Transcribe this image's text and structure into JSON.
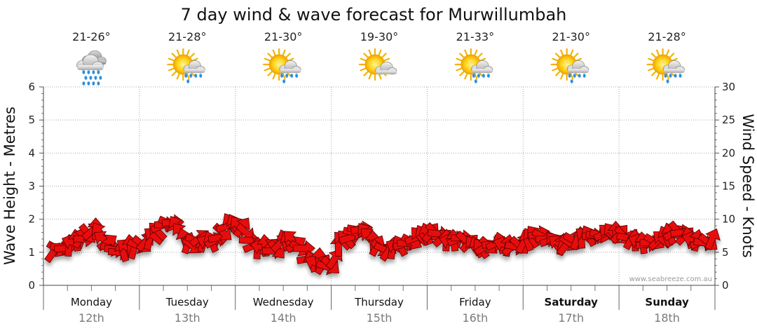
{
  "chart_data": {
    "type": "line",
    "title": "7 day wind & wave forecast for Murwillumbah",
    "ylabel_left": "Wave Height - Metres",
    "ylabel_right": "Wind Speed - Knots",
    "ylim_left": [
      0,
      6
    ],
    "ylim_right": [
      0,
      30
    ],
    "yticks_left": [
      "0",
      "1",
      "2",
      "3",
      "4",
      "5",
      "6"
    ],
    "yticks_right": [
      "0",
      "5",
      "10",
      "15",
      "20",
      "25",
      "30"
    ],
    "grid": true,
    "days": [
      {
        "name": "Monday",
        "date": "12th",
        "temp": "21-26°",
        "icon": "rain-cloud-icon",
        "bold": false
      },
      {
        "name": "Tuesday",
        "date": "13th",
        "temp": "21-28°",
        "icon": "sun-showers-icon",
        "bold": false
      },
      {
        "name": "Wednesday",
        "date": "14th",
        "temp": "21-30°",
        "icon": "sun-showers-icon",
        "bold": false
      },
      {
        "name": "Thursday",
        "date": "15th",
        "temp": "19-30°",
        "icon": "partly-cloudy-icon",
        "bold": false
      },
      {
        "name": "Friday",
        "date": "16th",
        "temp": "21-33°",
        "icon": "sun-showers-icon",
        "bold": false
      },
      {
        "name": "Saturday",
        "date": "17th",
        "temp": "21-30°",
        "icon": "sun-showers-icon",
        "bold": true
      },
      {
        "name": "Sunday",
        "date": "18th",
        "temp": "21-28°",
        "icon": "sun-showers-icon",
        "bold": true
      }
    ],
    "series": [
      {
        "unit": "knots",
        "color": "#e81010",
        "values": [
          5.0,
          5.5,
          5.8,
          5.6,
          6.0,
          6.5,
          6.8,
          7.2,
          7.0,
          7.8,
          8.2,
          8.5,
          8.0,
          7.0,
          6.5,
          5.6,
          5.4,
          5.0,
          5.2,
          5.8,
          6.0,
          5.6,
          6.0,
          6.2,
          6.6,
          7.0,
          7.5,
          8.2,
          9.0,
          9.2,
          9.4,
          9.5,
          9.0,
          8.0,
          7.0,
          6.4,
          6.0,
          6.8,
          7.2,
          6.6,
          6.5,
          6.6,
          6.8,
          7.2,
          8.0,
          9.0,
          9.4,
          9.2,
          9.0,
          8.8,
          8.0,
          6.8,
          6.0,
          5.6,
          5.8,
          6.0,
          5.8,
          5.2,
          5.4,
          6.4,
          6.8,
          6.6,
          7.0,
          6.2,
          5.6,
          5.6,
          4.0,
          3.6,
          3.4,
          4.0,
          3.2,
          2.8,
          3.0,
          4.0,
          6.0,
          6.8,
          7.0,
          7.2,
          8.0,
          8.4,
          8.5,
          8.0,
          7.4,
          6.6,
          6.0,
          5.6,
          5.4,
          5.2,
          5.6,
          5.8,
          6.0,
          6.2,
          6.4,
          6.6,
          7.2,
          7.5,
          7.6,
          7.8,
          8.0,
          8.0,
          7.8,
          7.2,
          6.8,
          6.6,
          6.8,
          7.0,
          7.2,
          6.8,
          6.4,
          6.0,
          5.8,
          5.6,
          5.8,
          6.0,
          6.2,
          6.4,
          6.4,
          6.2,
          6.0,
          5.8,
          5.8,
          6.0,
          6.4,
          6.8,
          7.2,
          7.6,
          7.8,
          7.4,
          7.0,
          6.8,
          6.6,
          6.4,
          6.2,
          6.0,
          6.4,
          6.8,
          7.0,
          7.2,
          7.5,
          7.5,
          7.5,
          7.5,
          7.6,
          7.8,
          8.0,
          8.0,
          8.0,
          7.8,
          7.5,
          7.2,
          7.0,
          6.8,
          6.6,
          6.4,
          6.2,
          6.4,
          6.6,
          6.8,
          7.0,
          7.4,
          7.8,
          8.0,
          8.2,
          8.0,
          7.5,
          7.2,
          7.0,
          6.8,
          6.5,
          6.4,
          6.5,
          7.0
        ]
      }
    ]
  },
  "credit": "www.seabreeze.com.au"
}
